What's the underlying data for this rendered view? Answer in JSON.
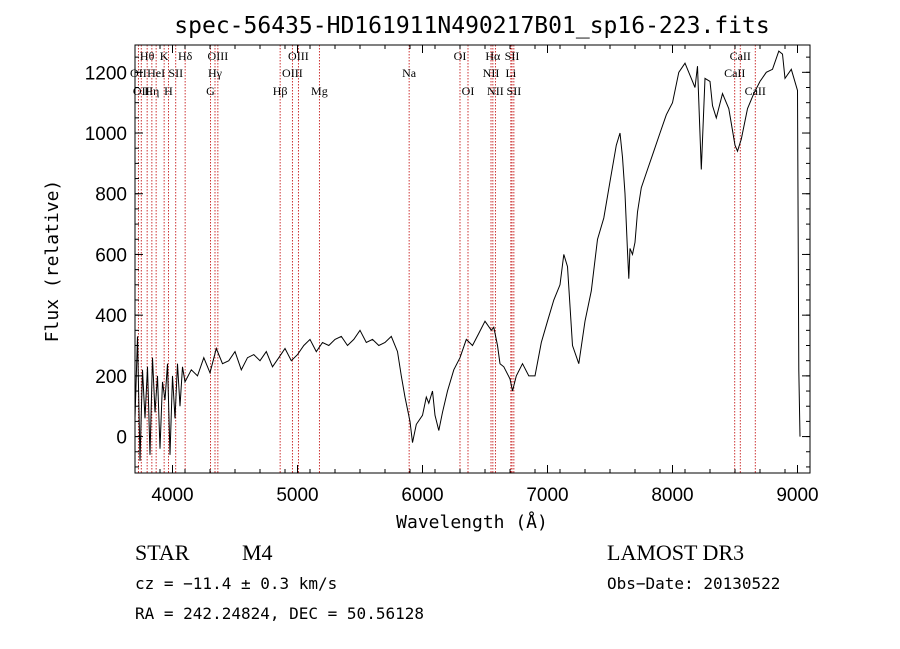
{
  "chart_data": {
    "type": "line",
    "title": "spec-56435-HD161911N490217B01_sp16-223.fits",
    "xlabel": "Wavelength (Å)",
    "ylabel": "Flux (relative)",
    "xlim": [
      3700,
      9100
    ],
    "ylim": [
      -120,
      1290
    ],
    "xticks": [
      4000,
      5000,
      6000,
      7000,
      8000,
      9000
    ],
    "yticks": [
      0,
      200,
      400,
      600,
      800,
      1000,
      1200
    ],
    "grid": false,
    "series": [
      {
        "color": "#000000",
        "x": [
          3700,
          3720,
          3740,
          3760,
          3780,
          3800,
          3820,
          3840,
          3860,
          3880,
          3900,
          3920,
          3940,
          3960,
          3980,
          4000,
          4020,
          4040,
          4060,
          4080,
          4100,
          4150,
          4200,
          4250,
          4300,
          4350,
          4400,
          4450,
          4500,
          4550,
          4600,
          4650,
          4700,
          4750,
          4800,
          4850,
          4900,
          4950,
          5000,
          5050,
          5100,
          5150,
          5200,
          5250,
          5300,
          5350,
          5400,
          5450,
          5500,
          5550,
          5600,
          5650,
          5700,
          5750,
          5800,
          5830,
          5860,
          5900,
          5920,
          5950,
          6000,
          6030,
          6050,
          6080,
          6100,
          6130,
          6160,
          6200,
          6250,
          6300,
          6350,
          6400,
          6450,
          6500,
          6550,
          6570,
          6600,
          6620,
          6650,
          6700,
          6720,
          6750,
          6800,
          6850,
          6900,
          6950,
          7000,
          7050,
          7100,
          7130,
          7160,
          7200,
          7250,
          7300,
          7350,
          7400,
          7450,
          7500,
          7550,
          7580,
          7600,
          7620,
          7640,
          7650,
          7660,
          7680,
          7700,
          7720,
          7750,
          7800,
          7850,
          7900,
          7950,
          8000,
          8050,
          8100,
          8150,
          8180,
          8200,
          8230,
          8260,
          8300,
          8320,
          8350,
          8400,
          8450,
          8500,
          8520,
          8550,
          8600,
          8650,
          8700,
          8750,
          8800,
          8850,
          8880,
          8900,
          8950,
          9000,
          9010,
          9020
        ],
        "y": [
          60,
          330,
          -80,
          220,
          60,
          230,
          -60,
          260,
          80,
          200,
          -40,
          180,
          120,
          240,
          -60,
          200,
          60,
          240,
          100,
          230,
          180,
          220,
          200,
          260,
          210,
          290,
          240,
          250,
          280,
          220,
          260,
          270,
          250,
          280,
          230,
          260,
          290,
          250,
          270,
          300,
          320,
          280,
          310,
          300,
          320,
          330,
          300,
          320,
          350,
          310,
          320,
          300,
          310,
          330,
          280,
          200,
          130,
          50,
          -20,
          40,
          70,
          130,
          110,
          150,
          70,
          20,
          80,
          150,
          220,
          260,
          320,
          300,
          340,
          380,
          350,
          360,
          300,
          240,
          230,
          190,
          150,
          200,
          240,
          200,
          200,
          310,
          380,
          450,
          500,
          600,
          560,
          300,
          240,
          380,
          480,
          650,
          720,
          840,
          960,
          1000,
          920,
          800,
          610,
          520,
          620,
          600,
          640,
          740,
          820,
          880,
          940,
          1000,
          1060,
          1100,
          1200,
          1230,
          1180,
          1150,
          1220,
          880,
          1180,
          1170,
          1090,
          1050,
          1130,
          1080,
          960,
          940,
          980,
          1080,
          1130,
          1170,
          1200,
          1210,
          1270,
          1260,
          1180,
          1210,
          1140,
          220,
          0
        ]
      }
    ],
    "line_markers": [
      {
        "wave": 3727,
        "label": "OII",
        "row": 1
      },
      {
        "wave": 3750,
        "label": "OII",
        "row": 2
      },
      {
        "wave": 3797,
        "label": "Hθ",
        "row": 0
      },
      {
        "wave": 3835,
        "label": "Hη",
        "row": 2
      },
      {
        "wave": 3869,
        "label": "HeI",
        "row": 1
      },
      {
        "wave": 3933,
        "label": "K",
        "row": 0
      },
      {
        "wave": 3968,
        "label": "H",
        "row": 2
      },
      {
        "wave": 4026,
        "label": "SII",
        "row": 1
      },
      {
        "wave": 4101,
        "label": "Hδ",
        "row": 0
      },
      {
        "wave": 4304,
        "label": "G",
        "row": 2
      },
      {
        "wave": 4340,
        "label": "Hγ",
        "row": 1
      },
      {
        "wave": 4363,
        "label": "OIII",
        "row": 0
      },
      {
        "wave": 4861,
        "label": "Hβ",
        "row": 2
      },
      {
        "wave": 4959,
        "label": "OIII",
        "row": 1
      },
      {
        "wave": 5007,
        "label": "OIII",
        "row": 0
      },
      {
        "wave": 5175,
        "label": "Mg",
        "row": 2
      },
      {
        "wave": 5893,
        "label": "Na",
        "row": 1
      },
      {
        "wave": 6300,
        "label": "OI",
        "row": 0
      },
      {
        "wave": 6364,
        "label": "OI",
        "row": 2
      },
      {
        "wave": 6548,
        "label": "NII",
        "row": 1
      },
      {
        "wave": 6563,
        "label": "Hα",
        "row": 0
      },
      {
        "wave": 6583,
        "label": "NII",
        "row": 2
      },
      {
        "wave": 6707,
        "label": "Li",
        "row": 1
      },
      {
        "wave": 6716,
        "label": "SII",
        "row": 0
      },
      {
        "wave": 6731,
        "label": "SII",
        "row": 2
      },
      {
        "wave": 8498,
        "label": "CaII",
        "row": 1
      },
      {
        "wave": 8542,
        "label": "CaII",
        "row": 0
      },
      {
        "wave": 8662,
        "label": "CaII",
        "row": 2
      }
    ],
    "marker_color": "#c00000"
  },
  "info": {
    "object_class": "STAR",
    "subclass": "M4",
    "survey": "LAMOST DR3",
    "cz": "cz = −11.4 ± 0.3 km/s",
    "obs_date": "Obs−Date: 20130522",
    "coords": "RA = 242.24824, DEC =  50.56128"
  }
}
